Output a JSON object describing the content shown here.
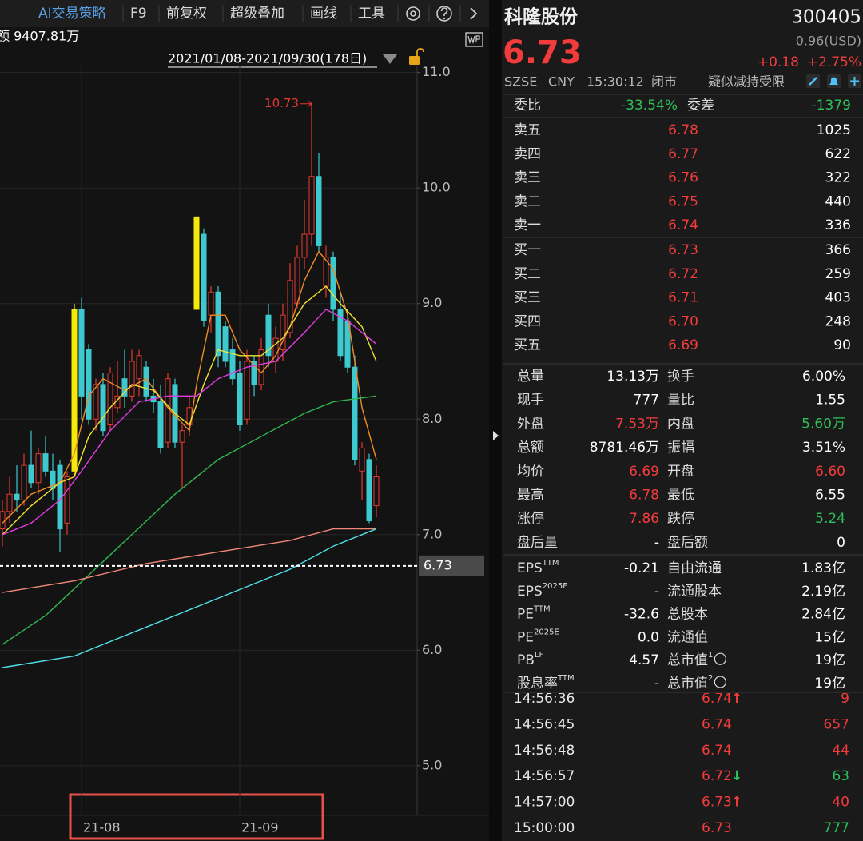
{
  "toolbar": {
    "items": [
      "AI交易策略",
      "F9",
      "前复权",
      "超级叠加",
      "画线",
      "工具"
    ],
    "amount": "额 9407.81万",
    "range": "2021/01/08-2021/09/30(178日)"
  },
  "chart_data": {
    "type": "candlestick",
    "up_color": "#e8382f",
    "down_color": "#3ec8cf",
    "grid": true,
    "ylim": [
      4.57,
      11.06
    ],
    "yticks": [
      {
        "value": 5,
        "label": "5.0"
      },
      {
        "value": 6,
        "label": "6.0"
      },
      {
        "value": 7,
        "label": "7.0"
      },
      {
        "value": 8,
        "label": "8.0"
      },
      {
        "value": 9,
        "label": "9.0"
      },
      {
        "value": 10,
        "label": "10.0"
      },
      {
        "value": 11,
        "label": "11.0"
      }
    ],
    "categories": [
      null,
      null,
      null,
      null,
      null,
      null,
      null,
      null,
      null,
      null,
      null,
      "21-08",
      null,
      null,
      null,
      null,
      null,
      null,
      null,
      null,
      null,
      null,
      null,
      null,
      null,
      null,
      null,
      null,
      null,
      null,
      null,
      null,
      null,
      "21-09",
      null,
      null,
      null,
      null,
      null,
      null,
      null,
      null,
      null,
      null,
      null,
      null,
      null,
      null,
      null,
      null,
      null,
      null,
      null
    ],
    "candles": [
      {
        "open": 7.05,
        "high": 7.3,
        "low": 6.9,
        "close": 7.2
      },
      {
        "open": 7.2,
        "high": 7.5,
        "low": 7.1,
        "close": 7.35
      },
      {
        "open": 7.35,
        "high": 7.6,
        "low": 7.2,
        "close": 7.3
      },
      {
        "open": 7.3,
        "high": 7.7,
        "low": 7.25,
        "close": 7.6
      },
      {
        "open": 7.6,
        "high": 7.9,
        "low": 7.4,
        "close": 7.45
      },
      {
        "open": 7.45,
        "high": 7.75,
        "low": 7.35,
        "close": 7.7
      },
      {
        "open": 7.7,
        "high": 7.85,
        "low": 7.5,
        "close": 7.55
      },
      {
        "open": 7.55,
        "high": 7.7,
        "low": 7.3,
        "close": 7.4
      },
      {
        "open": 7.6,
        "high": 7.65,
        "low": 6.85,
        "close": 7.05
      },
      {
        "open": 7.1,
        "high": 7.55,
        "low": 7.0,
        "close": 7.5
      },
      {
        "open": 7.55,
        "high": 9.0,
        "low": 7.5,
        "close": 8.95,
        "color": "#f5e90c"
      },
      {
        "open": 8.95,
        "high": 9.05,
        "low": 8.0,
        "close": 8.2
      },
      {
        "open": 8.6,
        "high": 8.65,
        "low": 7.95,
        "close": 8.0
      },
      {
        "open": 8.0,
        "high": 8.35,
        "low": 7.9,
        "close": 8.3
      },
      {
        "open": 8.3,
        "high": 8.4,
        "low": 7.85,
        "close": 7.9
      },
      {
        "open": 7.95,
        "high": 8.45,
        "low": 7.9,
        "close": 8.4
      },
      {
        "open": 8.1,
        "high": 8.5,
        "low": 8.05,
        "close": 8.2
      },
      {
        "open": 8.35,
        "high": 8.6,
        "low": 8.1,
        "close": 8.2
      },
      {
        "open": 8.2,
        "high": 8.6,
        "low": 8.15,
        "close": 8.5
      },
      {
        "open": 8.35,
        "high": 8.6,
        "low": 8.2,
        "close": 8.55
      },
      {
        "open": 8.45,
        "high": 8.5,
        "low": 8.15,
        "close": 8.2
      },
      {
        "open": 8.2,
        "high": 8.35,
        "low": 8.05,
        "close": 8.15
      },
      {
        "open": 8.15,
        "high": 8.3,
        "low": 7.7,
        "close": 7.75
      },
      {
        "open": 7.8,
        "high": 8.4,
        "low": 7.75,
        "close": 8.35
      },
      {
        "open": 8.3,
        "high": 8.35,
        "low": 7.75,
        "close": 7.8
      },
      {
        "open": 7.8,
        "high": 7.95,
        "low": 7.4,
        "close": 7.9
      },
      {
        "open": 7.95,
        "high": 8.2,
        "low": 7.85,
        "close": 8.1
      },
      {
        "open": 8.95,
        "high": 9.75,
        "low": 8.95,
        "close": 9.75,
        "color": "#f5e90c"
      },
      {
        "open": 9.6,
        "high": 9.65,
        "low": 8.8,
        "close": 8.85
      },
      {
        "open": 8.9,
        "high": 9.15,
        "low": 8.75,
        "close": 9.1
      },
      {
        "open": 9.1,
        "high": 9.15,
        "low": 8.45,
        "close": 8.55
      },
      {
        "open": 8.8,
        "high": 8.85,
        "low": 8.45,
        "close": 8.5
      },
      {
        "open": 8.6,
        "high": 8.7,
        "low": 8.3,
        "close": 8.35
      },
      {
        "open": 8.4,
        "high": 8.5,
        "low": 7.9,
        "close": 7.95
      },
      {
        "open": 8.0,
        "high": 8.6,
        "low": 7.95,
        "close": 8.5
      },
      {
        "open": 8.5,
        "high": 8.55,
        "low": 8.2,
        "close": 8.3
      },
      {
        "open": 8.3,
        "high": 8.7,
        "low": 8.25,
        "close": 8.6
      },
      {
        "open": 8.9,
        "high": 9.0,
        "low": 8.45,
        "close": 8.55
      },
      {
        "open": 8.5,
        "high": 8.8,
        "low": 8.4,
        "close": 8.7
      },
      {
        "open": 8.6,
        "high": 9.0,
        "low": 8.5,
        "close": 8.9
      },
      {
        "open": 8.75,
        "high": 9.35,
        "low": 8.7,
        "close": 9.2
      },
      {
        "open": 9.0,
        "high": 9.5,
        "low": 8.95,
        "close": 9.4
      },
      {
        "open": 9.4,
        "high": 9.9,
        "low": 9.3,
        "close": 9.6
      },
      {
        "open": 9.6,
        "high": 10.73,
        "low": 9.5,
        "close": 10.1
      },
      {
        "open": 10.1,
        "high": 10.3,
        "low": 9.45,
        "close": 9.5
      },
      {
        "open": 9.15,
        "high": 9.5,
        "low": 9.05,
        "close": 9.4
      },
      {
        "open": 9.4,
        "high": 9.45,
        "low": 8.85,
        "close": 8.95
      },
      {
        "open": 8.95,
        "high": 9.1,
        "low": 8.5,
        "close": 8.55
      },
      {
        "open": 8.85,
        "high": 8.95,
        "low": 8.4,
        "close": 8.45
      },
      {
        "open": 8.45,
        "high": 8.55,
        "low": 7.6,
        "close": 7.65
      },
      {
        "open": 7.55,
        "high": 7.8,
        "low": 7.3,
        "close": 7.75
      },
      {
        "open": 7.65,
        "high": 7.7,
        "low": 7.1,
        "close": 7.12
      },
      {
        "open": 7.25,
        "high": 7.6,
        "low": 7.15,
        "close": 7.5
      }
    ],
    "annotation_index": 43,
    "last_price": 6.73,
    "series": [
      {
        "color": "#f08a24",
        "x": [
          0,
          4,
          8,
          10,
          12,
          14,
          17,
          20,
          23,
          26,
          27,
          29,
          31,
          33,
          36,
          38,
          40,
          42,
          44,
          46,
          48,
          50,
          52
        ],
        "values": [
          7.1,
          7.35,
          7.45,
          7.7,
          8.2,
          8.35,
          8.25,
          8.35,
          8.1,
          7.9,
          8.3,
          8.9,
          8.9,
          8.6,
          8.4,
          8.55,
          8.8,
          9.2,
          9.45,
          9.3,
          8.9,
          8.1,
          7.65
        ]
      },
      {
        "color": "#f2e233",
        "x": [
          0,
          4,
          8,
          10,
          12,
          15,
          18,
          21,
          24,
          26,
          28,
          30,
          33,
          36,
          39,
          42,
          45,
          47,
          50,
          52
        ],
        "values": [
          7.0,
          7.25,
          7.45,
          7.5,
          7.85,
          8.1,
          8.3,
          8.25,
          8.05,
          7.95,
          8.3,
          8.6,
          8.55,
          8.55,
          8.7,
          9.0,
          9.15,
          9.0,
          8.8,
          8.5
        ]
      },
      {
        "color": "#e23be0",
        "x": [
          0,
          4,
          8,
          11,
          15,
          19,
          23,
          27,
          30,
          34,
          38,
          42,
          45,
          48,
          52
        ],
        "values": [
          7.0,
          7.1,
          7.3,
          7.55,
          7.9,
          8.15,
          8.2,
          8.2,
          8.35,
          8.45,
          8.5,
          8.75,
          8.95,
          8.85,
          8.65
        ]
      },
      {
        "color": "#2fb84e",
        "x": [
          0,
          6,
          12,
          18,
          24,
          30,
          36,
          42,
          46,
          52
        ],
        "values": [
          6.05,
          6.3,
          6.65,
          7.0,
          7.35,
          7.65,
          7.85,
          8.05,
          8.15,
          8.2
        ]
      },
      {
        "color": "#f08878",
        "x": [
          0,
          10,
          20,
          30,
          40,
          46,
          52
        ],
        "values": [
          6.5,
          6.6,
          6.75,
          6.85,
          6.95,
          7.05,
          7.05
        ]
      },
      {
        "color": "#4fe0ec",
        "x": [
          0,
          10,
          20,
          30,
          40,
          46,
          52
        ],
        "values": [
          5.85,
          5.95,
          6.2,
          6.45,
          6.7,
          6.9,
          7.05
        ]
      }
    ]
  },
  "quote": {
    "name": "科隆股份",
    "code": "300405",
    "price": "6.73",
    "usd": "0.96(USD)",
    "change": "+0.18",
    "change_pct": "+2.75%",
    "exchange": "SZSE",
    "currency": "CNY",
    "time": "15:30:12",
    "status": "闭市",
    "notice": "疑似减持受限"
  },
  "order_ratio": {
    "label": "委比",
    "value": "-33.54%",
    "label2": "委差",
    "value2": "-1379"
  },
  "asks": [
    {
      "label": "卖五",
      "price": "6.78",
      "volume": "1025"
    },
    {
      "label": "卖四",
      "price": "6.77",
      "volume": "622"
    },
    {
      "label": "卖三",
      "price": "6.76",
      "volume": "322"
    },
    {
      "label": "卖二",
      "price": "6.75",
      "volume": "440"
    },
    {
      "label": "卖一",
      "price": "6.74",
      "volume": "336"
    }
  ],
  "bids": [
    {
      "label": "买一",
      "price": "6.73",
      "volume": "366"
    },
    {
      "label": "买二",
      "price": "6.72",
      "volume": "259"
    },
    {
      "label": "买三",
      "price": "6.71",
      "volume": "403"
    },
    {
      "label": "买四",
      "price": "6.70",
      "volume": "248"
    },
    {
      "label": "买五",
      "price": "6.69",
      "volume": "90"
    }
  ],
  "stats": [
    [
      {
        "label": "总量",
        "value": "13.13万"
      },
      {
        "label": "换手",
        "value": "6.00%"
      }
    ],
    [
      {
        "label": "现手",
        "value": "777"
      },
      {
        "label": "量比",
        "value": "1.55"
      }
    ],
    [
      {
        "label": "外盘",
        "value": "7.53万",
        "color": "#f23c3c"
      },
      {
        "label": "内盘",
        "value": "5.60万",
        "color": "#2fbf5b"
      }
    ],
    [
      {
        "label": "总额",
        "value": "8781.46万"
      },
      {
        "label": "振幅",
        "value": "3.51%"
      }
    ],
    [
      {
        "label": "均价",
        "value": "6.69",
        "color": "#f23c3c"
      },
      {
        "label": "开盘",
        "value": "6.60",
        "color": "#f23c3c"
      }
    ],
    [
      {
        "label": "最高",
        "value": "6.78",
        "color": "#f23c3c"
      },
      {
        "label": "最低",
        "value": "6.55"
      }
    ],
    [
      {
        "label": "涨停",
        "value": "7.86",
        "color": "#f23c3c"
      },
      {
        "label": "跌停",
        "value": "5.24",
        "color": "#2fbf5b"
      }
    ],
    [
      {
        "label": "盘后量",
        "value": "-"
      },
      {
        "label": "盘后额",
        "value": "0"
      }
    ]
  ],
  "fundamentals": [
    [
      {
        "label": "EPS",
        "sup": "TTM",
        "value": "-0.21"
      },
      {
        "label": "自由流通",
        "value": "1.83亿"
      }
    ],
    [
      {
        "label": "EPS",
        "sup": "2025E",
        "value": "-"
      },
      {
        "label": "流通股本",
        "value": "2.19亿"
      }
    ],
    [
      {
        "label": "PE",
        "sup": "TTM",
        "value": "-32.6"
      },
      {
        "label": "总股本",
        "value": "2.84亿"
      }
    ],
    [
      {
        "label": "PE",
        "sup": "2025E",
        "value": "0.0"
      },
      {
        "label": "流通值",
        "value": "15亿"
      }
    ],
    [
      {
        "label": "PB",
        "sup": "LF",
        "value": "4.57"
      },
      {
        "label": "总市值",
        "sup": "1",
        "value": "19亿"
      }
    ],
    [
      {
        "label": "股息率",
        "sup": "TTM",
        "value": "-"
      },
      {
        "label": "总市值",
        "sup": "2",
        "value": "19亿"
      }
    ]
  ],
  "trades": [
    {
      "time": "14:56:36",
      "price": "6.74",
      "arrow": "↑",
      "volume": "9",
      "color": "#f23c3c"
    },
    {
      "time": "14:56:45",
      "price": "6.74",
      "volume": "657",
      "color": "#f23c3c"
    },
    {
      "time": "14:56:48",
      "price": "6.74",
      "volume": "44",
      "color": "#f23c3c"
    },
    {
      "time": "14:56:57",
      "price": "6.72",
      "arrow": "↓",
      "volume": "63",
      "color": "#2fbf5b"
    },
    {
      "time": "14:57:00",
      "price": "6.73",
      "arrow": "↑",
      "volume": "40",
      "color": "#f23c3c"
    },
    {
      "time": "15:00:00",
      "price": "6.73",
      "volume": "777",
      "color": "#2fbf5b"
    }
  ]
}
